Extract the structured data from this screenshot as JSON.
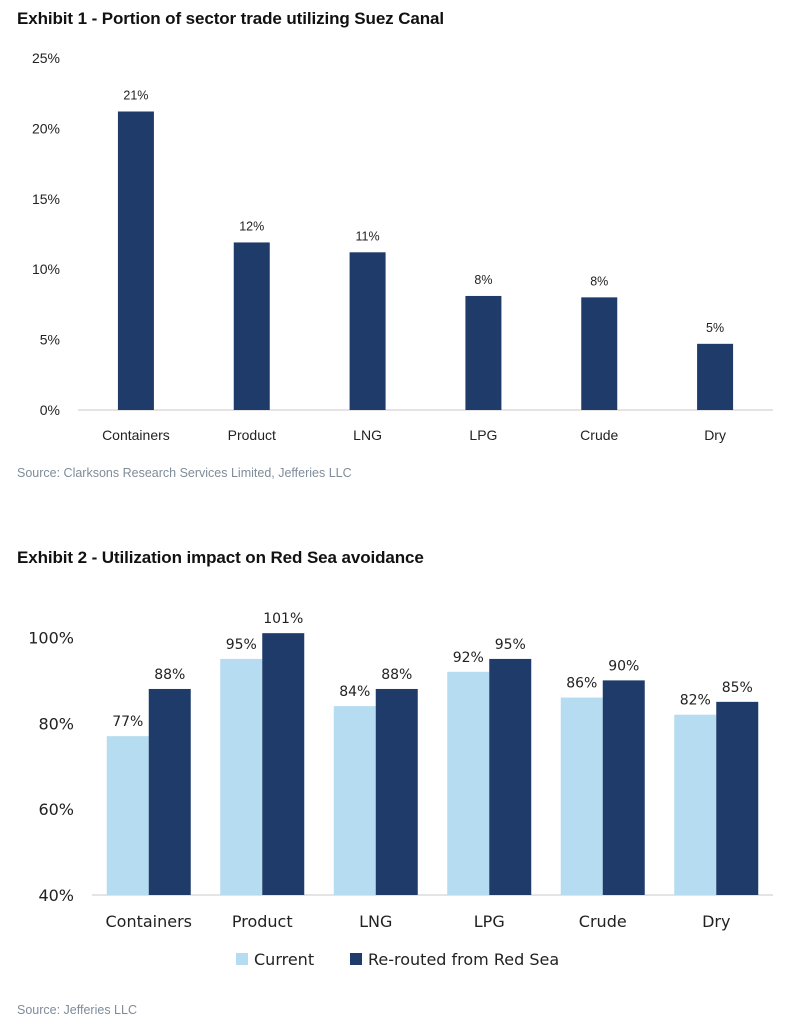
{
  "exhibit1": {
    "title": "Exhibit 1 - Portion of sector trade utilizing Suez Canal",
    "source": "Source: Clarksons Research Services Limited, Jefferies LLC"
  },
  "exhibit2": {
    "title": "Exhibit 2 - Utilization impact on Red Sea avoidance",
    "source": "Source: Jefferies LLC"
  },
  "colors": {
    "dark_bar": "#1f3b6a",
    "light_bar": "#b5dcf0",
    "axis": "#c8c8c8"
  },
  "chart_data": [
    {
      "type": "bar",
      "categories": [
        "Containers",
        "Product",
        "LNG",
        "LPG",
        "Crude",
        "Dry"
      ],
      "values": [
        21.2,
        11.9,
        11.2,
        8.1,
        8.0,
        4.7
      ],
      "data_labels": [
        "21%",
        "12%",
        "11%",
        "8%",
        "8%",
        "5%"
      ],
      "ylim": [
        0,
        25
      ],
      "yticks": [
        0,
        5,
        10,
        15,
        20,
        25
      ],
      "ytick_labels": [
        "0%",
        "5%",
        "10%",
        "15%",
        "20%",
        "25%"
      ],
      "grid": false
    },
    {
      "type": "bar",
      "categories": [
        "Containers",
        "Product",
        "LNG",
        "LPG",
        "Crude",
        "Dry"
      ],
      "series": [
        {
          "name": "Current",
          "values": [
            77,
            95,
            84,
            92,
            86,
            82
          ],
          "data_labels": [
            "77%",
            "95%",
            "84%",
            "92%",
            "86%",
            "82%"
          ]
        },
        {
          "name": "Re-routed from Red Sea",
          "values": [
            88,
            101,
            88,
            95,
            90,
            85
          ],
          "data_labels": [
            "88%",
            "101%",
            "88%",
            "95%",
            "90%",
            "85%"
          ]
        }
      ],
      "ylim": [
        40,
        105
      ],
      "yticks": [
        40,
        60,
        80,
        100
      ],
      "ytick_labels": [
        "40%",
        "60%",
        "80%",
        "100%"
      ],
      "legend_position": "bottom",
      "grid": false
    }
  ]
}
